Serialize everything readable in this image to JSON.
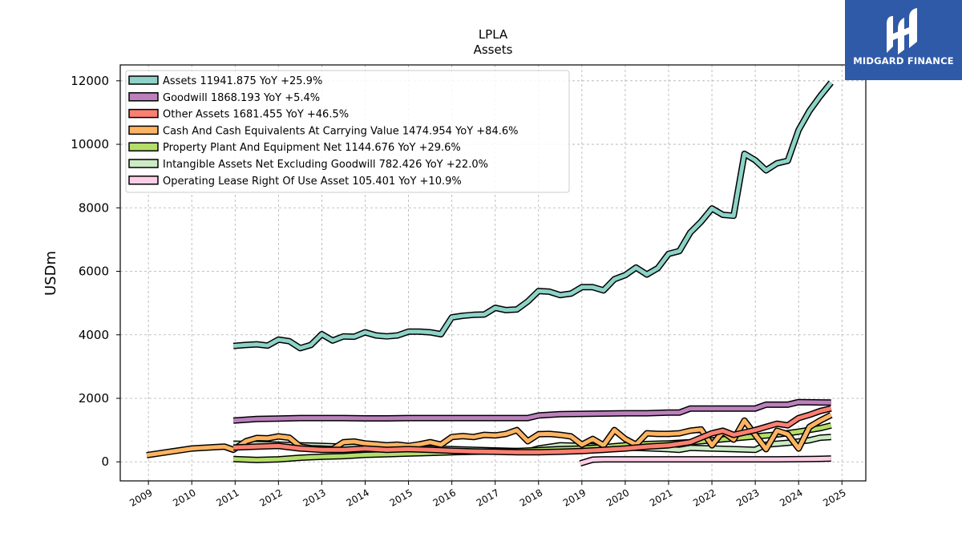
{
  "brand": {
    "name": "MIDGARD FINANCE",
    "bg_color": "#2f5aa8"
  },
  "chart_data": {
    "type": "line",
    "title": "LPLA",
    "subtitle": "Assets",
    "xlabel": "",
    "ylabel": "USDm",
    "xlim": [
      2008.35,
      2025.55
    ],
    "ylim": [
      -600,
      12500
    ],
    "x_ticks": [
      2009,
      2010,
      2011,
      2012,
      2013,
      2014,
      2015,
      2016,
      2017,
      2018,
      2019,
      2020,
      2021,
      2022,
      2023,
      2024,
      2025
    ],
    "y_ticks": [
      0,
      2000,
      4000,
      6000,
      8000,
      10000,
      12000
    ],
    "grid": true,
    "legend_position": "top-left",
    "series": [
      {
        "name": "Assets",
        "legend": "Assets  11941.875 YoY +25.9%",
        "color": "#8dd3c7",
        "x": [
          2010.96,
          2011.25,
          2011.5,
          2011.75,
          2012.0,
          2012.25,
          2012.5,
          2012.75,
          2013.0,
          2013.25,
          2013.5,
          2013.75,
          2014.0,
          2014.25,
          2014.5,
          2014.75,
          2015.0,
          2015.25,
          2015.5,
          2015.75,
          2016.0,
          2016.25,
          2016.5,
          2016.75,
          2017.0,
          2017.25,
          2017.5,
          2017.75,
          2018.0,
          2018.25,
          2018.5,
          2018.75,
          2019.0,
          2019.25,
          2019.5,
          2019.75,
          2020.0,
          2020.25,
          2020.5,
          2020.75,
          2021.0,
          2021.25,
          2021.5,
          2021.75,
          2022.0,
          2022.25,
          2022.5,
          2022.75,
          2023.0,
          2023.25,
          2023.5,
          2023.75,
          2024.0,
          2024.25,
          2024.5,
          2024.75
        ],
        "y": [
          3650,
          3680,
          3700,
          3660,
          3850,
          3800,
          3580,
          3680,
          4020,
          3820,
          3950,
          3940,
          4080,
          3980,
          3950,
          3980,
          4100,
          4100,
          4080,
          4020,
          4550,
          4600,
          4630,
          4640,
          4850,
          4780,
          4800,
          5050,
          5380,
          5360,
          5250,
          5300,
          5500,
          5500,
          5400,
          5750,
          5880,
          6120,
          5900,
          6100,
          6550,
          6640,
          7220,
          7560,
          7980,
          7780,
          7750,
          9700,
          9500,
          9180,
          9400,
          9480,
          10450,
          11050,
          11520,
          11942
        ]
      },
      {
        "name": "Goodwill",
        "legend": "Goodwill  1868.193 YoY +5.4%",
        "color": "#bc80bd",
        "x": [
          2010.96,
          2011.5,
          2012.0,
          2012.5,
          2013.0,
          2013.5,
          2014.0,
          2014.5,
          2015.0,
          2015.5,
          2016.0,
          2016.5,
          2017.0,
          2017.5,
          2017.75,
          2018.0,
          2018.5,
          2019.0,
          2019.5,
          2020.0,
          2020.5,
          2021.0,
          2021.25,
          2021.5,
          2022.0,
          2022.5,
          2023.0,
          2023.25,
          2023.75,
          2024.0,
          2024.5,
          2024.75
        ],
        "y": [
          1300,
          1350,
          1360,
          1380,
          1380,
          1380,
          1370,
          1370,
          1380,
          1380,
          1380,
          1380,
          1380,
          1380,
          1380,
          1460,
          1500,
          1510,
          1520,
          1530,
          1530,
          1550,
          1550,
          1680,
          1680,
          1680,
          1680,
          1800,
          1800,
          1880,
          1870,
          1868
        ]
      },
      {
        "name": "Other Assets",
        "legend": "Other Assets  1681.455 YoY +46.5%",
        "color": "#fb8072",
        "x": [
          2010.96,
          2011.5,
          2012.0,
          2012.5,
          2013.0,
          2013.5,
          2014.0,
          2014.5,
          2015.0,
          2015.5,
          2016.0,
          2016.5,
          2017.0,
          2017.5,
          2018.0,
          2018.5,
          2019.0,
          2019.5,
          2020.0,
          2020.5,
          2021.0,
          2021.5,
          2022.0,
          2022.25,
          2022.5,
          2023.0,
          2023.25,
          2023.5,
          2023.75,
          2024.0,
          2024.25,
          2024.5,
          2024.75
        ],
        "y": [
          450,
          480,
          500,
          420,
          380,
          380,
          420,
          380,
          400,
          380,
          350,
          330,
          320,
          300,
          300,
          320,
          340,
          380,
          420,
          480,
          520,
          620,
          900,
          980,
          850,
          1000,
          1100,
          1200,
          1150,
          1380,
          1480,
          1600,
          1681
        ]
      },
      {
        "name": "Cash And Cash Equivalents At Carrying Value",
        "legend": "Cash And Cash Equivalents At Carrying Value  1474.954 YoY +84.6%",
        "color": "#fdb462",
        "x": [
          2008.96,
          2009.5,
          2010.0,
          2010.5,
          2010.75,
          2010.96,
          2011.25,
          2011.5,
          2011.75,
          2012.0,
          2012.25,
          2012.5,
          2012.75,
          2013.0,
          2013.25,
          2013.5,
          2013.75,
          2014.0,
          2014.25,
          2014.5,
          2014.75,
          2015.0,
          2015.25,
          2015.5,
          2015.75,
          2016.0,
          2016.25,
          2016.5,
          2016.75,
          2017.0,
          2017.25,
          2017.5,
          2017.75,
          2018.0,
          2018.25,
          2018.5,
          2018.75,
          2019.0,
          2019.25,
          2019.5,
          2019.75,
          2020.0,
          2020.25,
          2020.5,
          2020.75,
          2021.0,
          2021.25,
          2021.5,
          2021.75,
          2022.0,
          2022.25,
          2022.5,
          2022.75,
          2023.0,
          2023.25,
          2023.5,
          2023.75,
          2024.0,
          2024.25,
          2024.5,
          2024.75
        ],
        "y": [
          210,
          320,
          420,
          460,
          480,
          380,
          650,
          750,
          740,
          800,
          760,
          480,
          430,
          420,
          400,
          620,
          640,
          580,
          550,
          520,
          540,
          500,
          550,
          620,
          540,
          780,
          810,
          780,
          850,
          830,
          880,
          1000,
          650,
          870,
          880,
          850,
          800,
          540,
          720,
          520,
          1000,
          720,
          540,
          900,
          880,
          880,
          900,
          980,
          1020,
          520,
          950,
          700,
          1300,
          850,
          400,
          980,
          870,
          420,
          1100,
          1300,
          1475
        ]
      },
      {
        "name": "Property Plant And Equipment Net",
        "legend": "Property Plant And Equipment Net  1144.676 YoY +29.6%",
        "color": "#b3de69",
        "x": [
          2010.96,
          2011.5,
          2012.0,
          2012.5,
          2013.0,
          2013.5,
          2014.0,
          2014.5,
          2015.0,
          2015.5,
          2016.0,
          2016.5,
          2017.0,
          2017.5,
          2018.0,
          2018.5,
          2019.0,
          2019.5,
          2020.0,
          2020.5,
          2021.0,
          2021.5,
          2022.0,
          2022.5,
          2023.0,
          2023.5,
          2024.0,
          2024.5,
          2024.75
        ],
        "y": [
          90,
          60,
          80,
          130,
          160,
          180,
          220,
          240,
          260,
          280,
          300,
          320,
          330,
          340,
          370,
          400,
          420,
          460,
          520,
          560,
          580,
          620,
          680,
          740,
          800,
          860,
          950,
          1060,
          1145
        ]
      },
      {
        "name": "Intangible Assets Net Excluding Goodwill",
        "legend": "Intangible Assets Net Excluding Goodwill  782.426 YoY +22.0%",
        "color": "#ccebc5",
        "x": [
          2010.96,
          2011.5,
          2012.0,
          2012.5,
          2013.0,
          2013.5,
          2014.0,
          2014.5,
          2015.0,
          2015.5,
          2016.0,
          2016.5,
          2017.0,
          2017.5,
          2017.75,
          2018.0,
          2018.5,
          2019.0,
          2019.5,
          2020.0,
          2020.5,
          2021.0,
          2021.25,
          2021.5,
          2022.0,
          2022.5,
          2023.0,
          2023.25,
          2023.75,
          2024.0,
          2024.25,
          2024.5,
          2024.75
        ],
        "y": [
          570,
          560,
          540,
          520,
          500,
          480,
          460,
          450,
          440,
          420,
          400,
          380,
          360,
          340,
          330,
          420,
          520,
          500,
          480,
          450,
          430,
          400,
          380,
          440,
          420,
          400,
          380,
          540,
          600,
          640,
          680,
          760,
          782
        ]
      },
      {
        "name": "Operating Lease Right Of Use Asset",
        "legend": "Operating Lease Right Of Use Asset  105.401 YoY +10.9%",
        "color": "#fccde5",
        "x": [
          2018.96,
          2019.25,
          2019.5,
          2020.0,
          2020.5,
          2021.0,
          2021.5,
          2022.0,
          2022.5,
          2023.0,
          2023.5,
          2024.0,
          2024.5,
          2024.75
        ],
        "y": [
          -50,
          70,
          80,
          80,
          80,
          80,
          80,
          80,
          80,
          80,
          80,
          85,
          95,
          105
        ]
      }
    ]
  }
}
